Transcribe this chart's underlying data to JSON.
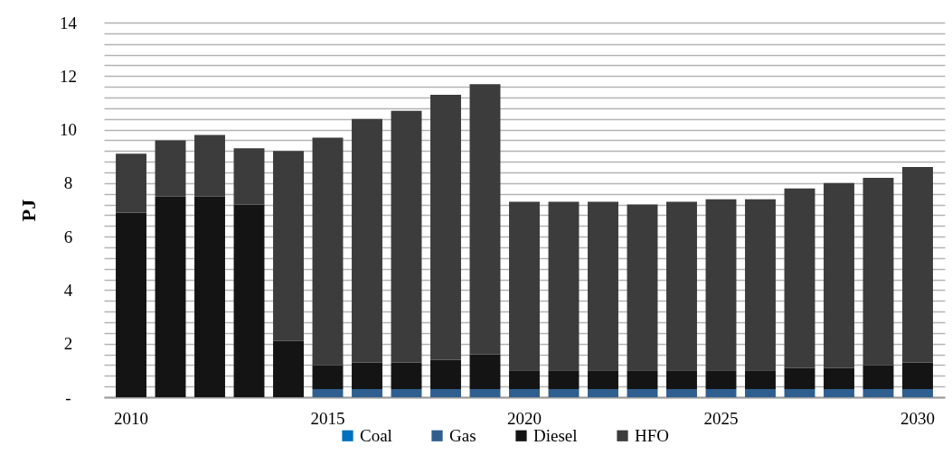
{
  "chart_data": {
    "type": "bar",
    "ylabel": "PJ",
    "stacked": true,
    "categories": [
      "2010",
      null,
      null,
      null,
      null,
      "2015",
      null,
      null,
      null,
      null,
      "2020",
      null,
      null,
      null,
      null,
      "2025",
      null,
      null,
      null,
      null,
      "2030"
    ],
    "ylim": [
      0,
      14
    ],
    "yticks": [
      {
        "value": 0,
        "label": "-"
      },
      {
        "value": 0.4,
        "label": null
      },
      {
        "value": 0.8,
        "label": null
      },
      {
        "value": 1.2,
        "label": null
      },
      {
        "value": 1.6,
        "label": null
      },
      2,
      {
        "value": 2.4,
        "label": null
      },
      {
        "value": 2.8,
        "label": null
      },
      {
        "value": 3.2,
        "label": null
      },
      {
        "value": 3.6,
        "label": null
      },
      4,
      {
        "value": 4.4,
        "label": null
      },
      {
        "value": 4.8,
        "label": null
      },
      {
        "value": 5.2,
        "label": null
      },
      {
        "value": 5.6,
        "label": null
      },
      6,
      {
        "value": 6.4,
        "label": null
      },
      {
        "value": 6.8,
        "label": null
      },
      {
        "value": 7.2,
        "label": null
      },
      {
        "value": 7.6,
        "label": null
      },
      8,
      {
        "value": 8.4,
        "label": null
      },
      {
        "value": 8.8,
        "label": null
      },
      {
        "value": 9.2,
        "label": null
      },
      {
        "value": 9.6,
        "label": null
      },
      10,
      {
        "value": 10.4,
        "label": null
      },
      {
        "value": 10.8,
        "label": null
      },
      {
        "value": 11.2,
        "label": null
      },
      {
        "value": 11.6,
        "label": null
      },
      12,
      {
        "value": 12.4,
        "label": null
      },
      {
        "value": 12.8,
        "label": null
      },
      {
        "value": 13.2,
        "label": null
      },
      {
        "value": 13.6,
        "label": null
      },
      14
    ],
    "grid": "y",
    "legend": "bottom",
    "series": [
      {
        "name": "Coal",
        "color": "#0070c0",
        "values": [
          0,
          0,
          0,
          0,
          0,
          0,
          0,
          0,
          0,
          0,
          0,
          0,
          0,
          0,
          0,
          0,
          0,
          0,
          0,
          0,
          0
        ]
      },
      {
        "name": "Gas",
        "color": "#2f5f8f",
        "values": [
          0,
          0,
          0,
          0,
          0,
          0.3,
          0.3,
          0.3,
          0.3,
          0.3,
          0.3,
          0.3,
          0.3,
          0.3,
          0.3,
          0.3,
          0.3,
          0.3,
          0.3,
          0.3,
          0.3
        ]
      },
      {
        "name": "Diesel",
        "color": "#141414",
        "values": [
          6.9,
          7.5,
          7.5,
          7.2,
          2.1,
          0.9,
          1.0,
          1.0,
          1.1,
          1.3,
          0.7,
          0.7,
          0.7,
          0.7,
          0.7,
          0.7,
          0.7,
          0.8,
          0.8,
          0.9,
          1.0
        ]
      },
      {
        "name": "HFO",
        "color": "#3c3c3c",
        "values": [
          2.2,
          2.1,
          2.3,
          2.1,
          7.1,
          8.5,
          9.1,
          9.4,
          9.9,
          10.1,
          6.3,
          6.3,
          6.3,
          6.2,
          6.3,
          6.4,
          6.4,
          6.7,
          6.9,
          7.0,
          7.3
        ]
      }
    ]
  }
}
